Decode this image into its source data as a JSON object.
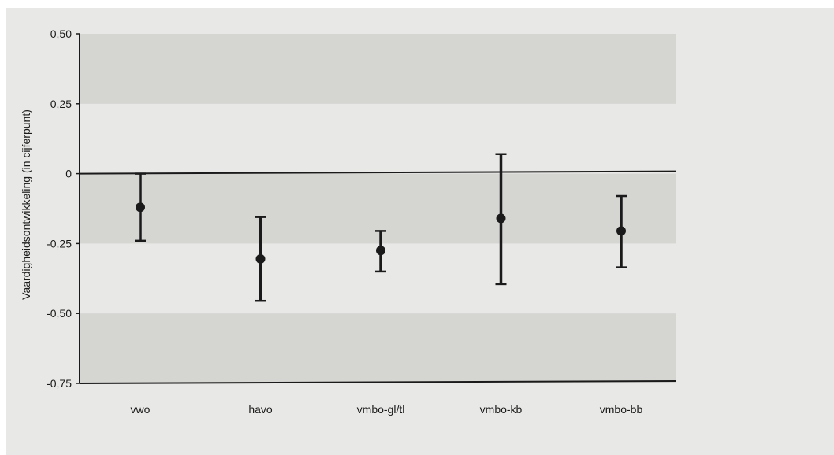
{
  "chart_data": {
    "type": "scatter",
    "title": "",
    "xlabel": "",
    "ylabel": "Vaardigheidsontwikkeling (in cijferpunt)",
    "ylim": [
      -0.75,
      0.5
    ],
    "y_ticks": [
      0.5,
      0.25,
      0,
      -0.25,
      -0.5,
      -0.75
    ],
    "y_tick_labels": [
      "0,50",
      "0,25",
      "0",
      "-0,25",
      "-0,50",
      "-0,75"
    ],
    "categories": [
      "vwo",
      "havo",
      "vmbo-gl/tl",
      "vmbo-kb",
      "vmbo-bb"
    ],
    "values": [
      -0.12,
      -0.305,
      -0.275,
      -0.16,
      -0.205
    ],
    "lower": [
      -0.24,
      -0.455,
      -0.35,
      -0.395,
      -0.335
    ],
    "upper": [
      0.0,
      -0.155,
      -0.205,
      0.07,
      -0.08
    ],
    "grid": "horizontal bands",
    "colors": {
      "background": "#e8e8e6",
      "band": "#d5d5d2",
      "marker": "#1a1a1a"
    }
  }
}
